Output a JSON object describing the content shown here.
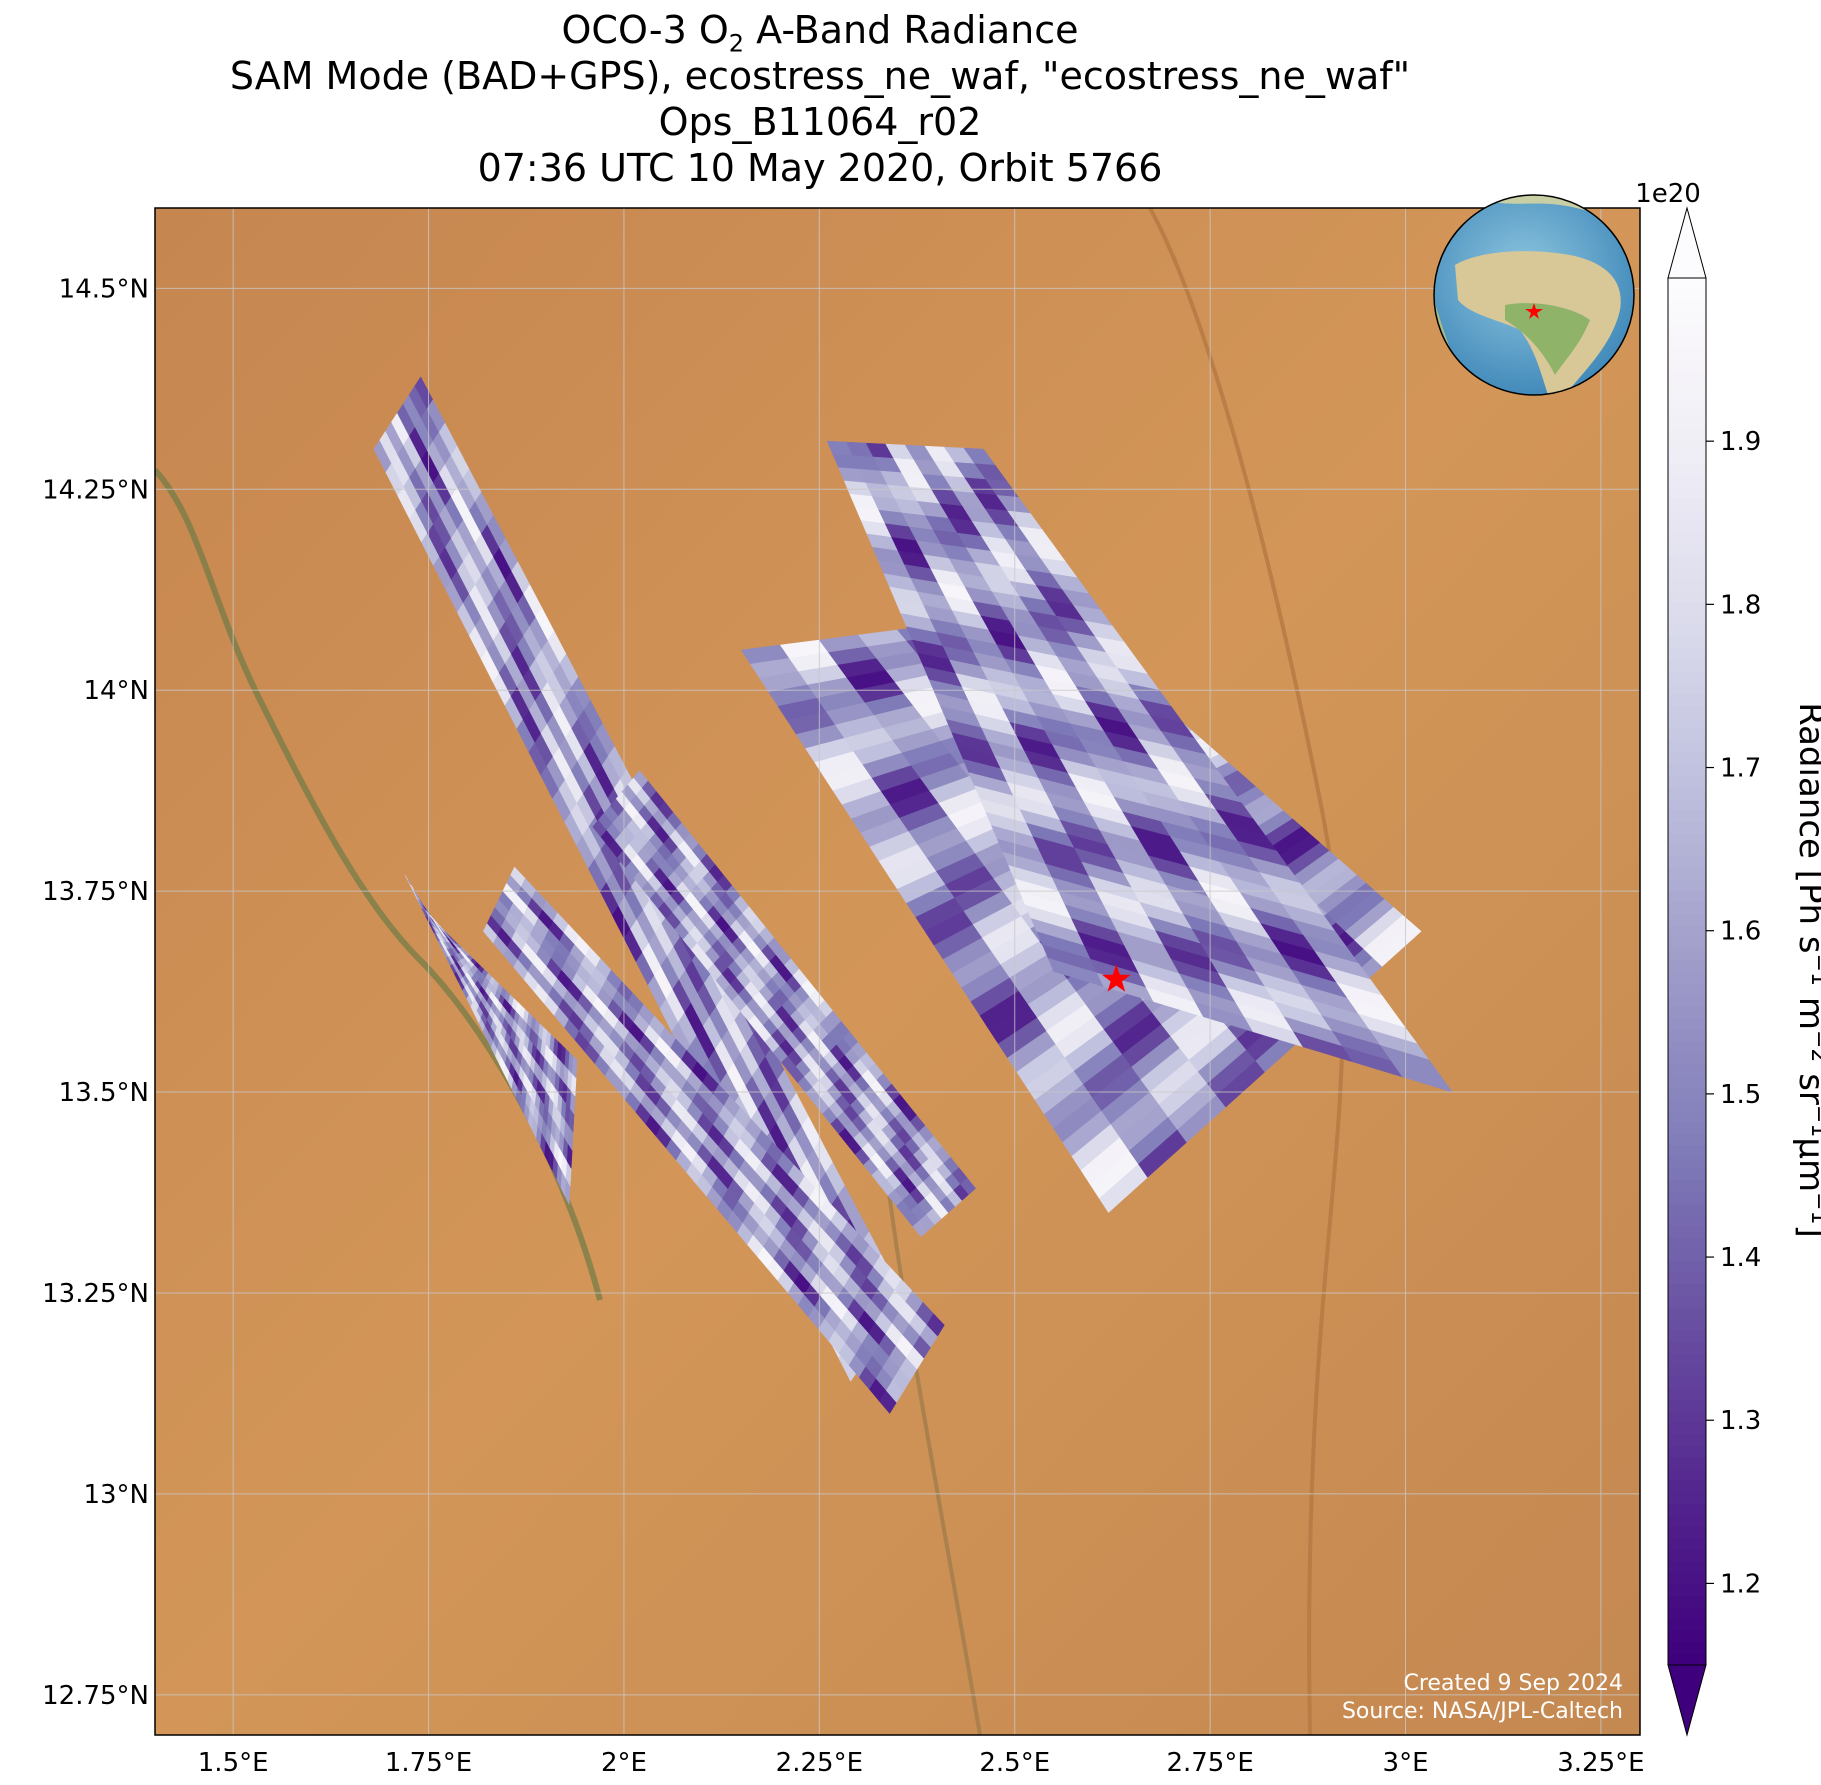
{
  "title": {
    "line1_pre": "OCO-3 O",
    "line1_sub": "2",
    "line1_post": " A-Band Radiance",
    "line2": "SAM Mode (BAD+GPS), ecostress_ne_waf, \"ecostress_ne_waf\"",
    "line3": "Ops_B11064_r02",
    "line4": "07:36 UTC 10 May 2020, Orbit 5766"
  },
  "map": {
    "lon_range": [
      1.4,
      3.3
    ],
    "lat_range": [
      12.7,
      14.6
    ],
    "lon_ticks": [
      {
        "value": 1.5,
        "label": "1.5°E"
      },
      {
        "value": 1.75,
        "label": "1.75°E"
      },
      {
        "value": 2.0,
        "label": "2°E"
      },
      {
        "value": 2.25,
        "label": "2.25°E"
      },
      {
        "value": 2.5,
        "label": "2.5°E"
      },
      {
        "value": 2.75,
        "label": "2.75°E"
      },
      {
        "value": 3.0,
        "label": "3°E"
      },
      {
        "value": 3.25,
        "label": "3.25°E"
      }
    ],
    "lat_ticks": [
      {
        "value": 14.5,
        "label": "14.5°N"
      },
      {
        "value": 14.25,
        "label": "14.25°N"
      },
      {
        "value": 14.0,
        "label": "14°N"
      },
      {
        "value": 13.75,
        "label": "13.75°N"
      },
      {
        "value": 13.5,
        "label": "13.5°N"
      },
      {
        "value": 13.25,
        "label": "13.25°N"
      },
      {
        "value": 13.0,
        "label": "13°N"
      },
      {
        "value": 12.75,
        "label": "12.75°N"
      }
    ],
    "target_marker": {
      "lon": 2.63,
      "lat": 13.64,
      "color": "#ff0000"
    },
    "background_color": "#c98a4e",
    "credit_line1": "Created 9 Sep 2024",
    "credit_line2": "Source: NASA/JPL-Caltech"
  },
  "swaths": [
    {
      "name": "swath-1",
      "corners": [
        [
          1.68,
          14.3
        ],
        [
          1.74,
          14.39
        ],
        [
          2.36,
          13.24
        ],
        [
          2.29,
          13.14
        ]
      ]
    },
    {
      "name": "swath-2",
      "corners": [
        [
          1.82,
          13.7
        ],
        [
          1.86,
          13.78
        ],
        [
          2.41,
          13.21
        ],
        [
          2.34,
          13.1
        ]
      ]
    },
    {
      "name": "swath-3",
      "corners": [
        [
          1.72,
          13.77
        ],
        [
          1.75,
          13.72
        ],
        [
          1.94,
          13.54
        ],
        [
          1.93,
          13.36
        ]
      ]
    },
    {
      "name": "swath-4",
      "corners": [
        [
          1.96,
          13.83
        ],
        [
          2.02,
          13.9
        ],
        [
          2.45,
          13.38
        ],
        [
          2.38,
          13.32
        ]
      ]
    },
    {
      "name": "swath-5",
      "corners": [
        [
          2.15,
          14.05
        ],
        [
          2.55,
          14.1
        ],
        [
          3.02,
          13.7
        ],
        [
          2.62,
          13.35
        ]
      ]
    },
    {
      "name": "swath-6",
      "corners": [
        [
          2.26,
          14.31
        ],
        [
          2.46,
          14.3
        ],
        [
          3.06,
          13.5
        ],
        [
          2.55,
          13.65
        ]
      ]
    }
  ],
  "colorbar": {
    "label_pre": "Radiance [Ph s",
    "label_exp1": "−1",
    "label_mid1": " m",
    "label_exp2": "−2",
    "label_mid2": " sr",
    "label_exp3": "−1",
    "label_mid3": "μm",
    "label_exp4": "−1",
    "label_post": "]",
    "multiplier": "1e20",
    "min": 1.15,
    "max": 2.0,
    "colors": [
      "#3f007d",
      "#54278f",
      "#6a51a3",
      "#807dba",
      "#9e9ac8",
      "#bcbddc",
      "#dadaeb",
      "#efedf5",
      "#fcfbfd"
    ],
    "ticks": [
      {
        "value": 1.2,
        "label": "1.2"
      },
      {
        "value": 1.3,
        "label": "1.3"
      },
      {
        "value": 1.4,
        "label": "1.4"
      },
      {
        "value": 1.5,
        "label": "1.5"
      },
      {
        "value": 1.6,
        "label": "1.6"
      },
      {
        "value": 1.7,
        "label": "1.7"
      },
      {
        "value": 1.8,
        "label": "1.8"
      },
      {
        "value": 1.9,
        "label": "1.9"
      }
    ]
  }
}
